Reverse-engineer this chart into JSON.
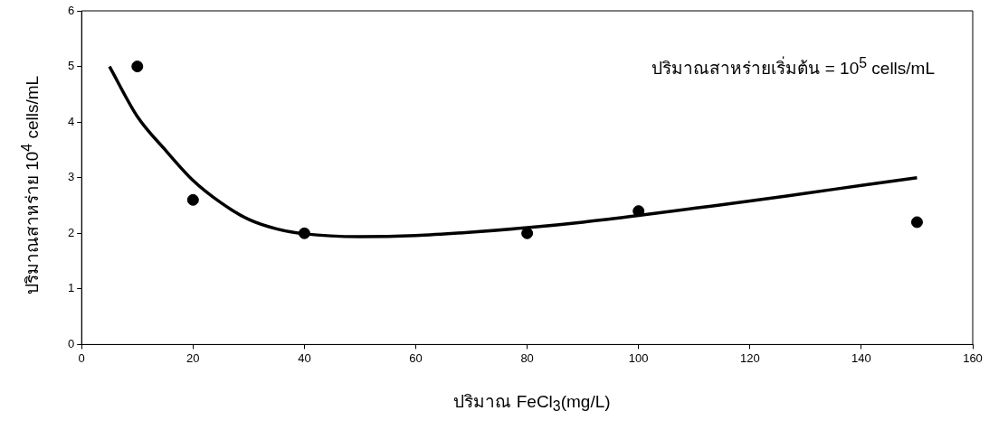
{
  "chart_data": {
    "type": "scatter",
    "xlabel": "ปริมาณ FeCl$_{3}$(mg/L)",
    "ylabel": "ปริมาณสาหร่าย  10$^{4}$ cells/mL",
    "annotations": [
      "ปริมาณสาหร่ายเริ่มต้น = 10$^{5}$ cells/mL"
    ],
    "x": [
      10,
      20,
      40,
      80,
      100,
      150
    ],
    "series": [
      {
        "type": "scatter",
        "color": "#000000",
        "values": [
          5,
          2.6,
          2,
          2,
          2.4,
          2.2
        ],
        "marker": "circle"
      },
      {
        "type": "line",
        "color": "#000000",
        "x": [
          5,
          10,
          15,
          20,
          25,
          30,
          35,
          40,
          50,
          60,
          70,
          80,
          90,
          100,
          110,
          120,
          130,
          140,
          150
        ],
        "values": [
          5,
          4.1,
          3.5,
          2.95,
          2.55,
          2.25,
          2.08,
          1.99,
          1.94,
          1.96,
          2.02,
          2.1,
          2.2,
          2.32,
          2.45,
          2.58,
          2.72,
          2.86,
          3.0
        ],
        "line_style": "solid"
      }
    ],
    "xlim": [
      0,
      160
    ],
    "xticks": [
      0,
      20,
      40,
      60,
      80,
      100,
      120,
      140,
      160
    ],
    "ylim": [
      0,
      6
    ],
    "yticks": [
      0,
      1,
      2,
      3,
      4,
      5,
      6
    ],
    "grid": false,
    "legend": false
  }
}
